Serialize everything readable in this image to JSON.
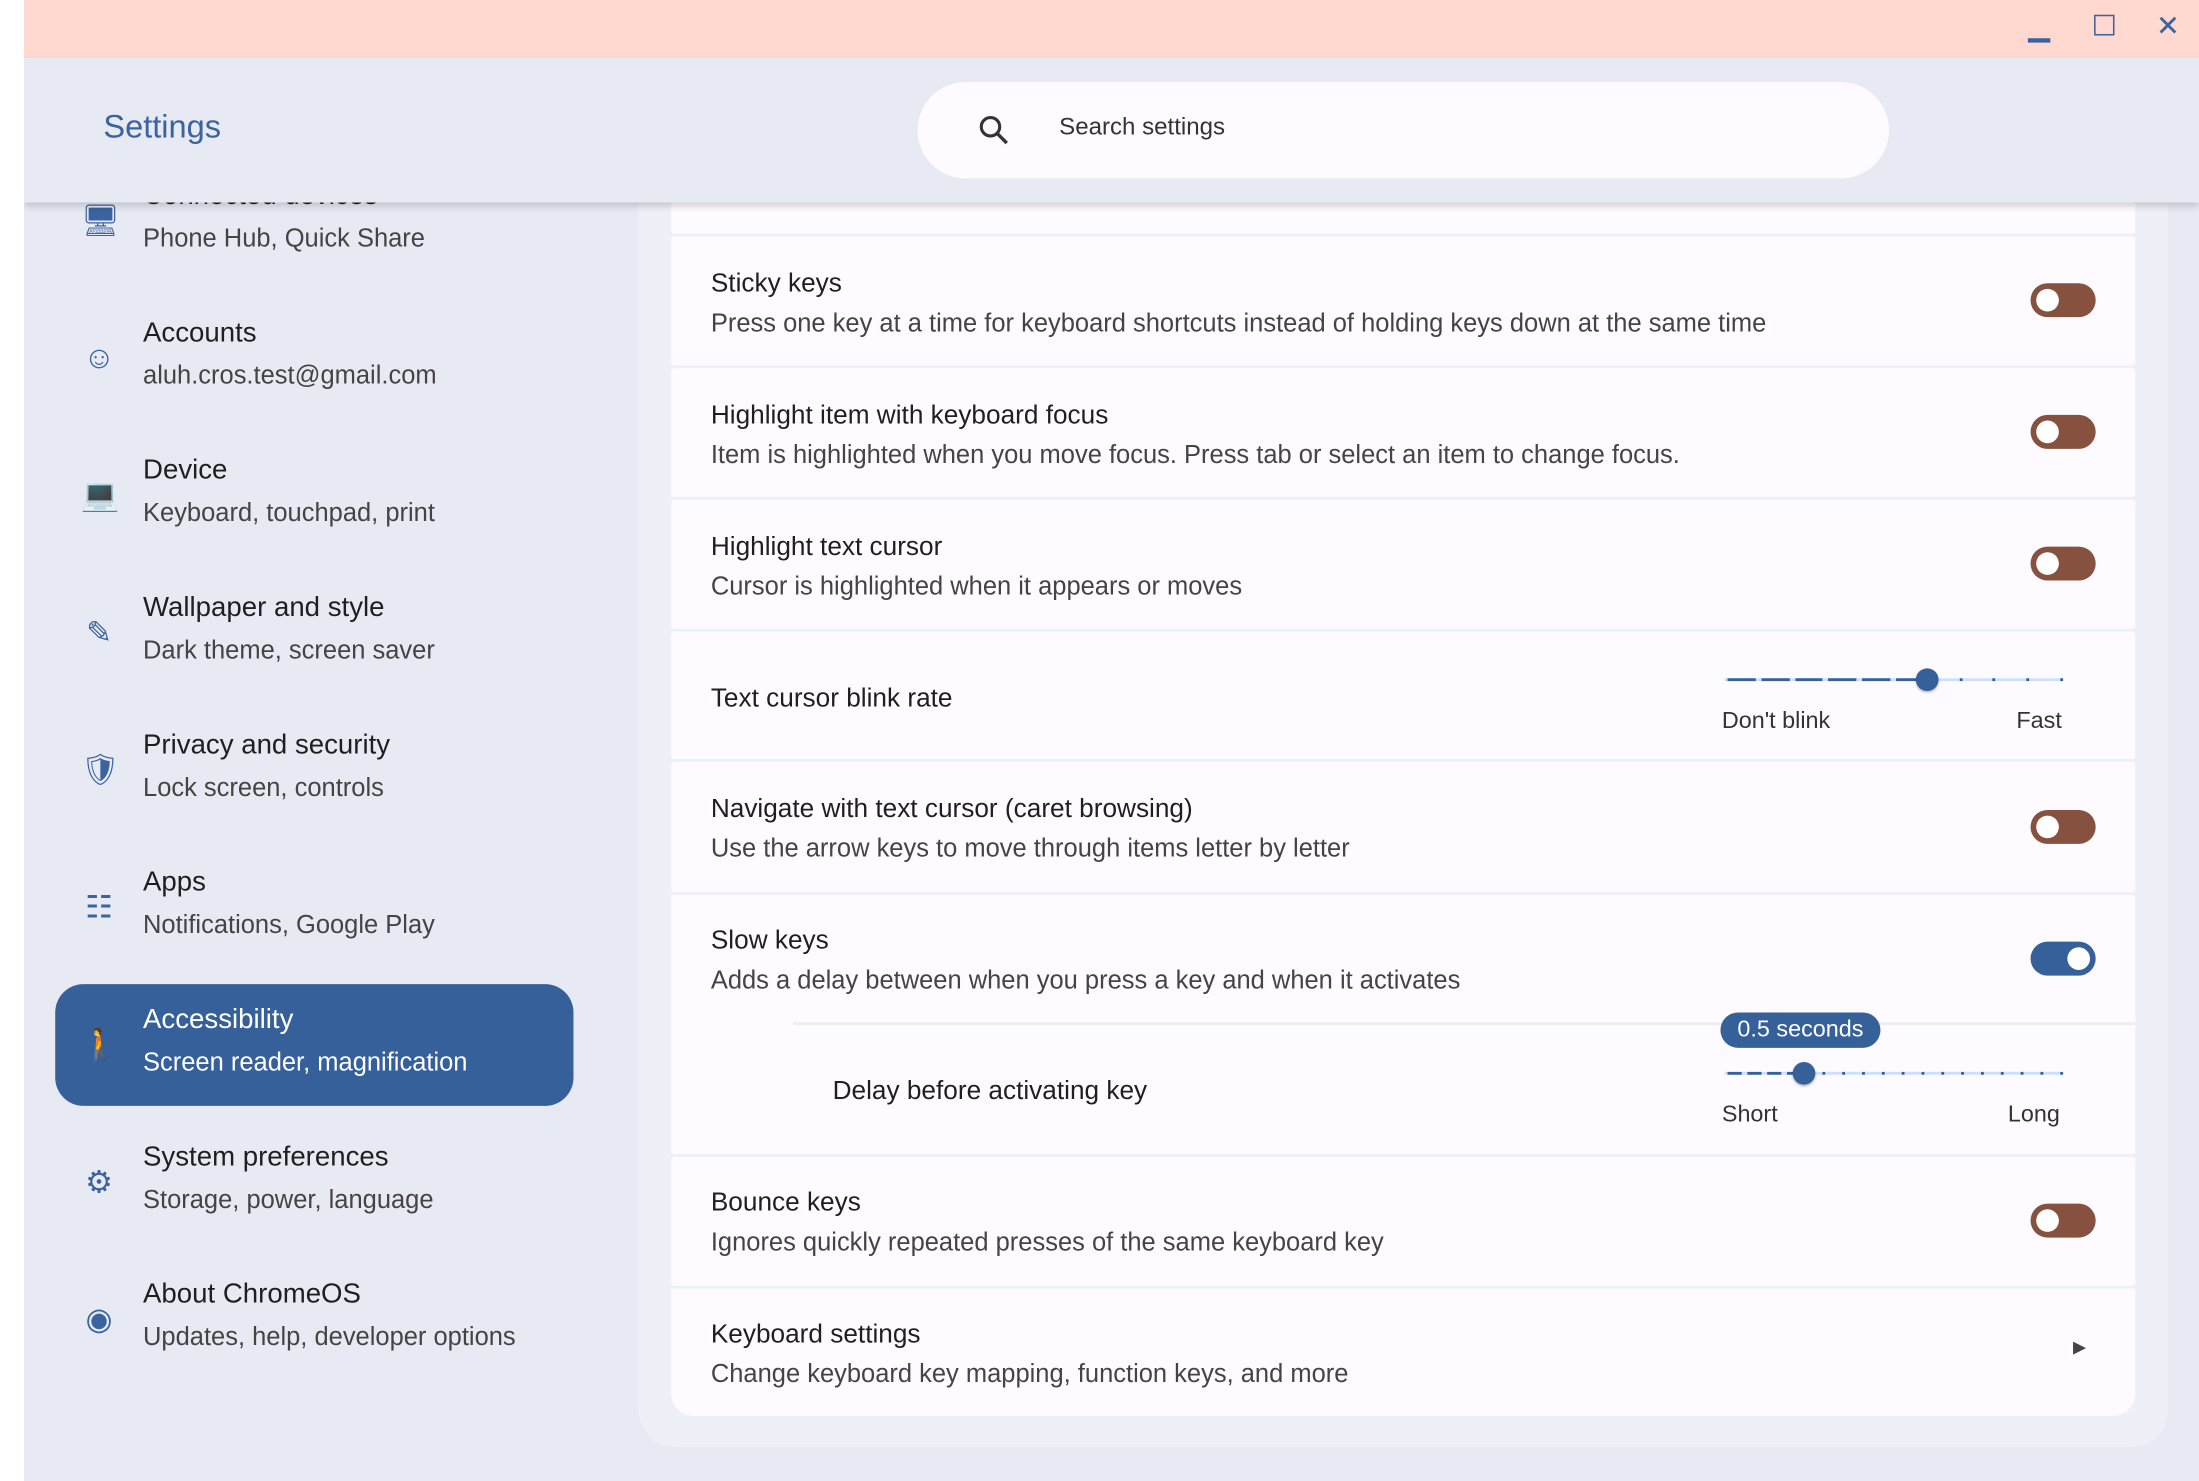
{
  "window": {
    "title": "Settings",
    "controls": [
      "minimize",
      "maximize",
      "close"
    ]
  },
  "search": {
    "placeholder": "Search settings"
  },
  "colors": {
    "accent": "#36609a",
    "toggle_off": "#86513f",
    "titlebar": "#ffd9cf"
  },
  "sidebar": {
    "items": [
      {
        "title": "Connected devices",
        "subtitle": "Phone Hub, Quick Share",
        "icon": "devices-icon"
      },
      {
        "title": "Accounts",
        "subtitle": "aluh.cros.test@gmail.com",
        "icon": "account-icon"
      },
      {
        "title": "Device",
        "subtitle": "Keyboard, touchpad, print",
        "icon": "laptop-icon"
      },
      {
        "title": "Wallpaper and style",
        "subtitle": "Dark theme, screen saver",
        "icon": "palette-icon"
      },
      {
        "title": "Privacy and security",
        "subtitle": "Lock screen, controls",
        "icon": "shield-icon"
      },
      {
        "title": "Apps",
        "subtitle": "Notifications, Google Play",
        "icon": "apps-grid-icon"
      },
      {
        "title": "Accessibility",
        "subtitle": "Screen reader, magnification",
        "icon": "accessibility-icon",
        "selected": true
      },
      {
        "title": "System preferences",
        "subtitle": "Storage, power, language",
        "icon": "gear-icon"
      },
      {
        "title": "About ChromeOS",
        "subtitle": "Updates, help, developer options",
        "icon": "chrome-icon"
      }
    ]
  },
  "settings": {
    "sticky": {
      "title": "Sticky keys",
      "subtitle": "Press one key at a time for keyboard shortcuts instead of holding keys down at the same time",
      "on": false
    },
    "focus": {
      "title": "Highlight item with keyboard focus",
      "subtitle": "Item is highlighted when you move focus. Press tab or select an item to change focus.",
      "on": false
    },
    "cursor": {
      "title": "Highlight text cursor",
      "subtitle": "Cursor is highlighted when it appears or moves",
      "on": false
    },
    "blink": {
      "title": "Text cursor blink rate",
      "min_label": "Don't blink",
      "max_label": "Fast",
      "steps": 11,
      "value_index": 6
    },
    "caret": {
      "title": "Navigate with text cursor (caret browsing)",
      "subtitle": "Use the arrow keys to move through items letter by letter",
      "on": false
    },
    "slow": {
      "title": "Slow keys",
      "subtitle": "Adds a delay between when you press a key and when it activates",
      "on": true
    },
    "delay": {
      "title": "Delay before activating key",
      "value_label": "0.5 seconds",
      "min_label": "Short",
      "max_label": "Long",
      "steps": 18,
      "value_index": 4
    },
    "bounce": {
      "title": "Bounce keys",
      "subtitle": "Ignores quickly repeated presses of the same keyboard key",
      "on": false
    },
    "keyboard": {
      "title": "Keyboard settings",
      "subtitle": "Change keyboard key mapping, function keys, and more"
    }
  }
}
